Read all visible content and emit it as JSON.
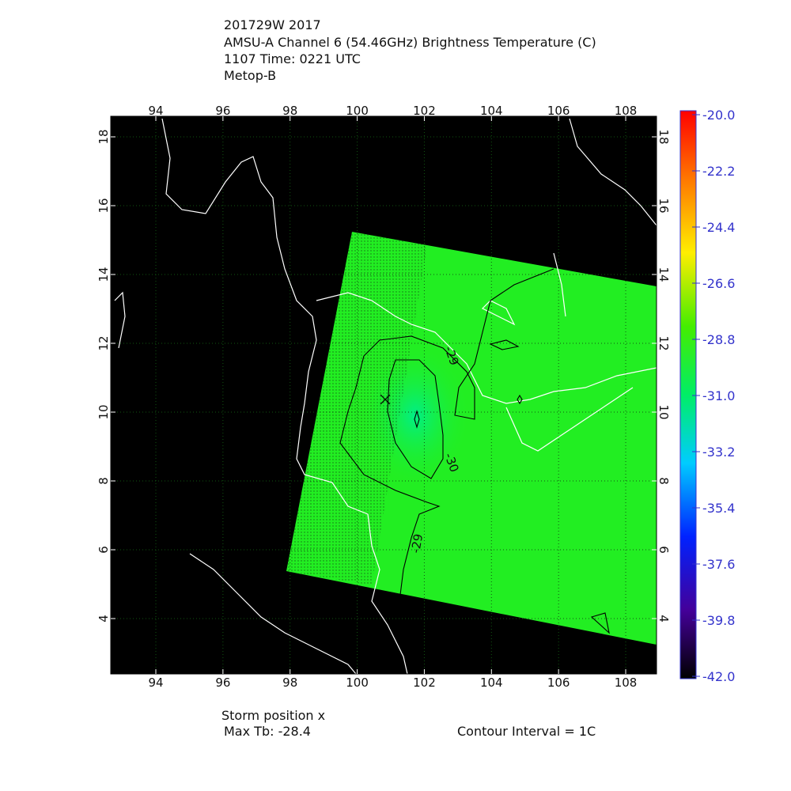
{
  "header": {
    "lines": [
      "201729W 2017",
      "AMSU-A Channel 6 (54.46GHz) Brightness Temperature (C)",
      "1107 Time: 0221 UTC",
      "Metop-B"
    ]
  },
  "map": {
    "lon_ticks": [
      94,
      96,
      98,
      100,
      102,
      104,
      106,
      108
    ],
    "lat_ticks": [
      4,
      6,
      8,
      10,
      12,
      14,
      16,
      18
    ],
    "contour_labels": [
      "-29",
      "-30",
      "-29"
    ]
  },
  "colorbar": {
    "labels": [
      "-20.0",
      "-22.2",
      "-24.4",
      "-26.6",
      "-28.8",
      "-31.0",
      "-33.2",
      "-35.4",
      "-37.6",
      "-39.8",
      "-42.0"
    ]
  },
  "footer": {
    "storm": "Storm position x",
    "max_tb": "Max Tb: -28.4",
    "contour_interval": "Contour Interval = 1C"
  }
}
